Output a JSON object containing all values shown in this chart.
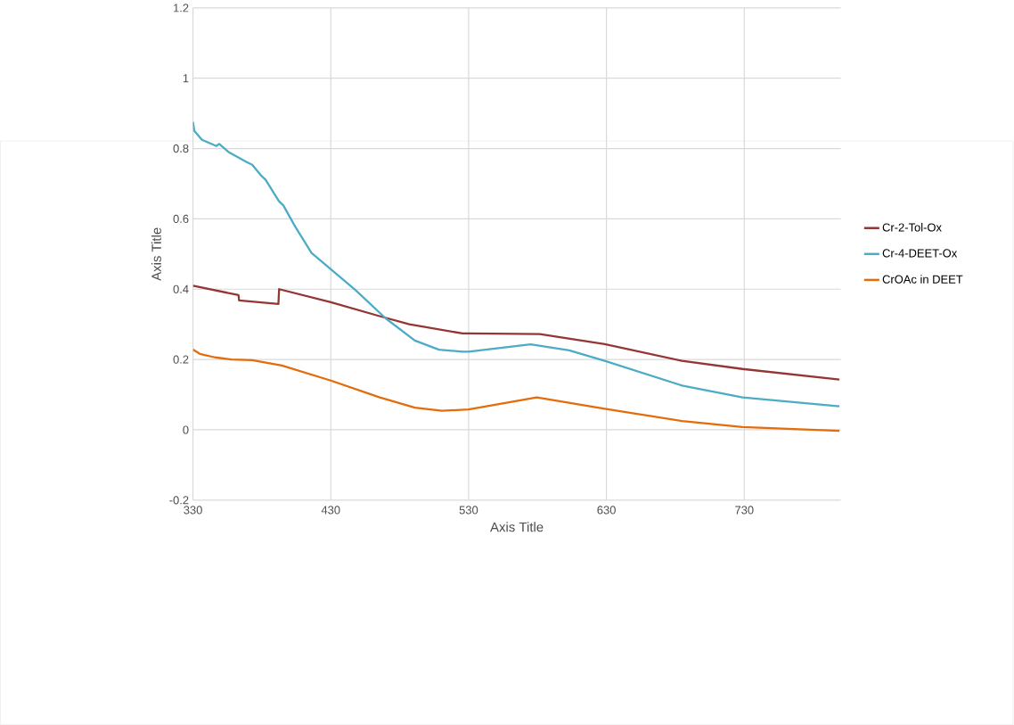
{
  "chart_data": {
    "type": "line",
    "xlabel": "Axis Title",
    "ylabel": "Axis Title",
    "xlim": [
      330,
      800
    ],
    "ylim": [
      -0.2,
      1.2
    ],
    "xticks": [
      330,
      430,
      530,
      630,
      730
    ],
    "yticks": [
      -0.2,
      0,
      0.2,
      0.4,
      0.6,
      0.8,
      1,
      1.2
    ],
    "grid": true,
    "legend": "right",
    "marker": "none",
    "line_style": "solid",
    "series": [
      {
        "name": "Cr-2-Tol-Ox",
        "color": "#943634",
        "x": [
          330,
          363,
          363.5,
          392,
          392.5,
          430,
          466.5,
          487,
          525.6,
          530,
          581.6,
          628.7,
          684.8,
          728.7,
          799
        ],
        "values": [
          0.41,
          0.383,
          0.368,
          0.358,
          0.4,
          0.363,
          0.322,
          0.3,
          0.274,
          0.274,
          0.272,
          0.244,
          0.196,
          0.173,
          0.143
        ]
      },
      {
        "name": "Cr-4-DEET-Ox",
        "color": "#4bacc6",
        "x": [
          330,
          331,
          336.5,
          347,
          349,
          355.8,
          368.7,
          373,
          379.5,
          382.7,
          392.4,
          395.6,
          404,
          416,
          430,
          448,
          469.8,
          491,
          508.5,
          525.6,
          530,
          575,
          603,
          628.7,
          684.8,
          728.7,
          799
        ],
        "values": [
          0.876,
          0.85,
          0.825,
          0.807,
          0.813,
          0.79,
          0.762,
          0.754,
          0.723,
          0.711,
          0.65,
          0.638,
          0.579,
          0.503,
          0.457,
          0.397,
          0.317,
          0.254,
          0.228,
          0.222,
          0.222,
          0.243,
          0.226,
          0.196,
          0.126,
          0.092,
          0.067
        ]
      },
      {
        "name": "CrOAc in DEET",
        "color": "#e46c0a",
        "x": [
          330,
          335,
          346,
          357.9,
          373,
          394.5,
          430,
          465.5,
          491,
          510.6,
          530,
          579.5,
          628.7,
          684.8,
          728.7,
          799
        ],
        "values": [
          0.228,
          0.216,
          0.206,
          0.2,
          0.198,
          0.183,
          0.14,
          0.092,
          0.063,
          0.054,
          0.058,
          0.092,
          0.06,
          0.025,
          0.008,
          -0.003
        ]
      }
    ]
  }
}
